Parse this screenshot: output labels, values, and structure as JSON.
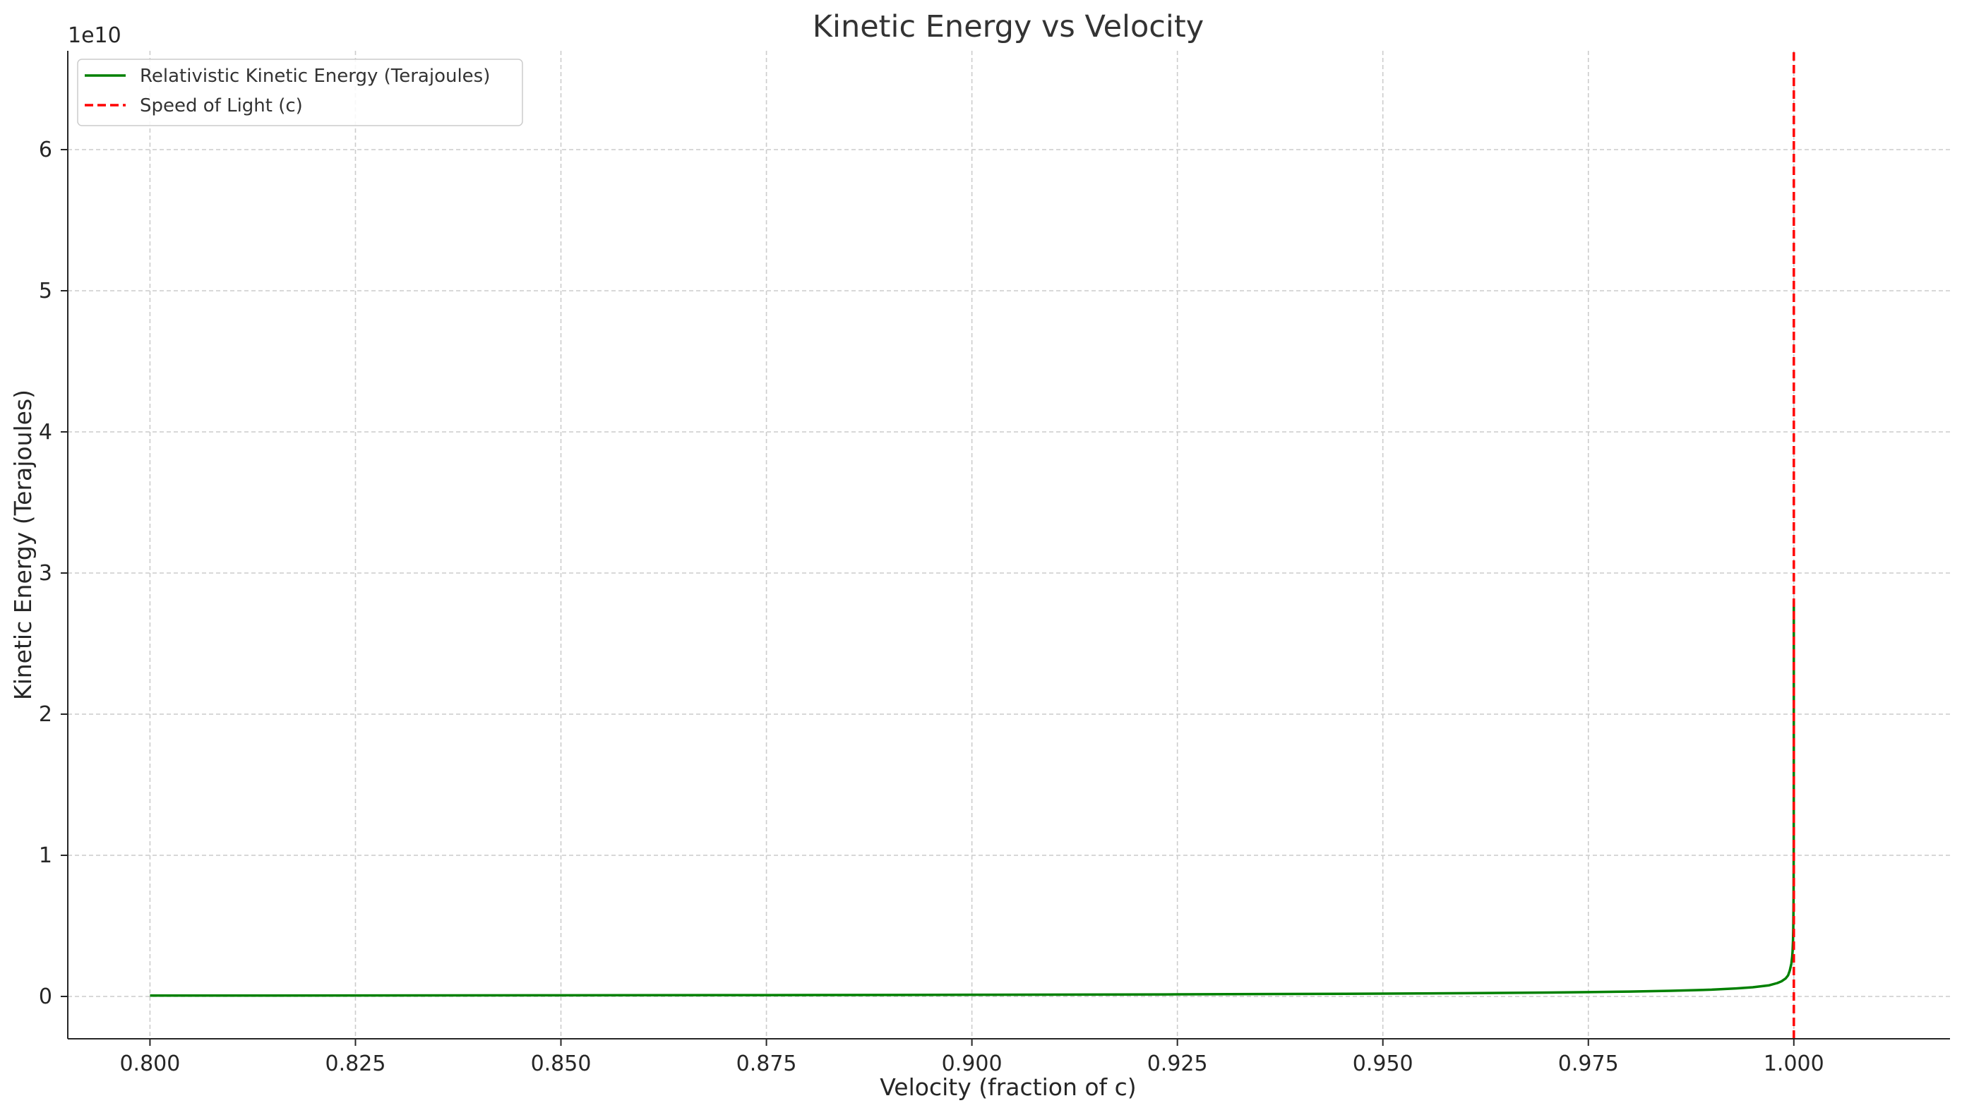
{
  "chart_data": {
    "type": "line",
    "title": "Kinetic Energy vs Velocity",
    "xlabel": "Velocity (fraction of c)",
    "ylabel": "Kinetic Energy (Terajoules)",
    "y_offset_label": "1e10",
    "xlim": [
      0.79,
      1.019
    ],
    "ylim": [
      -0.3,
      6.7
    ],
    "x_ticks": [
      0.8,
      0.825,
      0.85,
      0.875,
      0.9,
      0.925,
      0.95,
      0.975,
      1.0
    ],
    "x_tick_labels": [
      "0.800",
      "0.825",
      "0.850",
      "0.875",
      "0.900",
      "0.925",
      "0.950",
      "0.975",
      "1.000"
    ],
    "y_ticks": [
      0,
      1,
      2,
      3,
      4,
      5,
      6
    ],
    "y_tick_labels": [
      "0",
      "1",
      "2",
      "3",
      "4",
      "5",
      "6"
    ],
    "grid": true,
    "legend_position": "top-left",
    "series": [
      {
        "name": "Relativistic Kinetic Energy (Terajoules)",
        "color": "#008000",
        "style": "solid",
        "x": [
          0.8,
          0.825,
          0.85,
          0.875,
          0.9,
          0.925,
          0.95,
          0.96,
          0.97,
          0.975,
          0.98,
          0.985,
          0.99,
          0.993,
          0.995,
          0.997,
          0.998,
          0.9985,
          0.999,
          0.9993,
          0.9995,
          0.9997,
          0.9998,
          0.99985,
          0.9999,
          0.999935,
          0.99996,
          0.999975,
          0.999985,
          0.99999,
          0.999995,
          0.999998
        ],
        "y": [
          0.006,
          0.0069,
          0.008,
          0.0096,
          0.0116,
          0.0148,
          0.0198,
          0.0231,
          0.0274,
          0.0304,
          0.0344,
          0.0398,
          0.048,
          0.0568,
          0.0651,
          0.0789,
          0.095,
          0.1072,
          0.1272,
          0.1492,
          0.182,
          0.2319,
          0.2813,
          0.323,
          0.3946,
          0.4882,
          0.6284,
          0.7984,
          1.0249,
          1.2577,
          1.7712,
          2.7993
        ]
      },
      {
        "name": "Speed of Light (c)",
        "color": "#ff0000",
        "style": "dashed",
        "x": [
          1.0,
          1.0
        ],
        "y": [
          -0.3,
          6.7
        ]
      }
    ]
  }
}
